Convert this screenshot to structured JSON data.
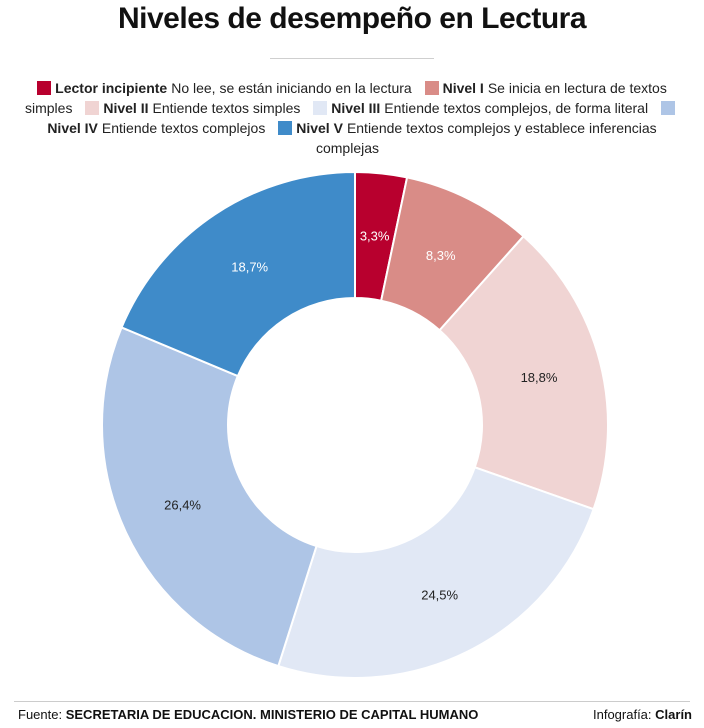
{
  "chart_data": {
    "type": "pie",
    "title": "Niveles de desempeño en Lectura",
    "categories": [
      "Lector incipiente",
      "Nivel I",
      "Nivel II",
      "Nivel III",
      "Nivel IV",
      "Nivel V"
    ],
    "descriptions": [
      "No lee, se están iniciando en la lectura",
      "Se inicia en lectura de textos simples",
      "Entiende textos simples",
      "Entiende textos complejos, de forma literal",
      "Entiende textos complejos",
      "Entiende textos complejos y establece inferencias complejas"
    ],
    "values": [
      3.3,
      8.3,
      18.8,
      24.5,
      26.4,
      18.7
    ],
    "value_labels": [
      "3,3%",
      "8,3%",
      "18,8%",
      "24,5%",
      "26,4%",
      "18,7%"
    ],
    "colors": [
      "#b8002e",
      "#d98c87",
      "#f0d4d3",
      "#e1e8f5",
      "#aec5e6",
      "#3f8bc9"
    ],
    "label_colors": [
      "#ffffff",
      "#ffffff",
      "#222222",
      "#222222",
      "#222222",
      "#ffffff"
    ],
    "donut": true,
    "legend_position": "top"
  },
  "footer": {
    "source_prefix": "Fuente:",
    "source_text": "SECRETARIA DE EDUCACION. MINISTERIO DE CAPITAL HUMANO",
    "credit_prefix": "Infografía:",
    "credit_text": "Clarín"
  }
}
